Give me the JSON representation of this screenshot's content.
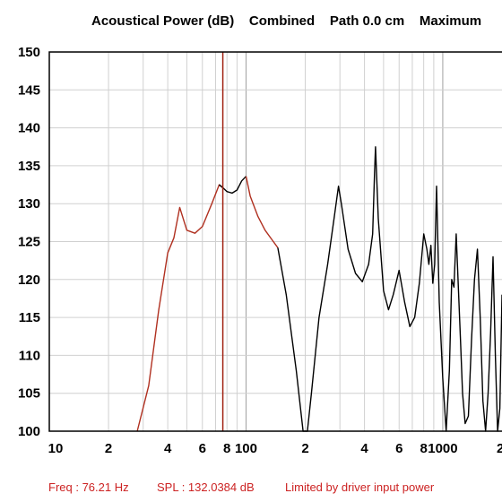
{
  "chart_data": {
    "type": "line",
    "title": "Acoustical Power (dB)    Combined    Path 0.0 cm    Maximum",
    "xlabel": "",
    "ylabel": "",
    "xscale": "log",
    "xlim": [
      10,
      2000
    ],
    "ylim": [
      100,
      150
    ],
    "grid": true,
    "yticks": [
      "150",
      "145",
      "140",
      "135",
      "130",
      "125",
      "120",
      "115",
      "110",
      "105",
      "100"
    ],
    "xtick_labels": [
      {
        "value": 10,
        "label": "10"
      },
      {
        "value": 20,
        "label": "2"
      },
      {
        "value": 40,
        "label": "4"
      },
      {
        "value": 60,
        "label": "6"
      },
      {
        "value": 80,
        "label": "8"
      },
      {
        "value": 100,
        "label": "100"
      },
      {
        "value": 200,
        "label": "2"
      },
      {
        "value": 400,
        "label": "4"
      },
      {
        "value": 600,
        "label": "6"
      },
      {
        "value": 800,
        "label": "8"
      },
      {
        "value": 1000,
        "label": "1000"
      },
      {
        "value": 2000,
        "label": "2"
      }
    ],
    "cursor_x": 76.21,
    "series": [
      {
        "segment": "limited",
        "color": "#b03020",
        "x": [
          28,
          32,
          36,
          40,
          43,
          46,
          50,
          55,
          60,
          67,
          73,
          76.21
        ],
        "y": [
          100,
          106,
          116,
          123.5,
          125.5,
          129.5,
          126.5,
          126.1,
          127,
          130,
          132.5,
          132.1
        ]
      },
      {
        "segment": "normal",
        "color": "#000000",
        "x": [
          73,
          76.21,
          80,
          85,
          90,
          95,
          100
        ],
        "y": [
          132.5,
          132.1,
          131.6,
          131.4,
          131.8,
          133,
          133.6
        ]
      },
      {
        "segment": "limited",
        "color": "#b03020",
        "x": [
          100,
          105,
          115,
          125,
          135,
          145
        ],
        "y": [
          133.6,
          131,
          128.3,
          126.5,
          125.3,
          124.2
        ]
      },
      {
        "segment": "normal",
        "color": "#000000",
        "x": [
          145,
          160,
          180,
          195,
          205,
          215,
          235,
          260,
          280,
          295,
          305,
          330,
          360,
          390,
          420,
          440,
          450,
          455,
          470,
          500,
          530,
          560,
          600,
          640,
          680,
          720,
          760,
          800,
          830,
          850,
          870,
          890,
          910,
          930,
          960,
          1000,
          1040,
          1080,
          1110,
          1140,
          1170,
          1200,
          1230,
          1260,
          1300,
          1350,
          1400,
          1450,
          1500,
          1550,
          1600,
          1650,
          1700,
          1750,
          1800,
          1850,
          1900,
          1950,
          2000
        ],
        "y": [
          124.2,
          118,
          108,
          100,
          100,
          105,
          115,
          122,
          128,
          132.3,
          130,
          124,
          120.8,
          119.7,
          122,
          126,
          134,
          137.5,
          128,
          118.5,
          116,
          118,
          121.2,
          117,
          113.8,
          115,
          119.5,
          126,
          124,
          122,
          124.5,
          119.5,
          122,
          132.3,
          117,
          107,
          100,
          108,
          120,
          119,
          126,
          119,
          112,
          105,
          101,
          102,
          112,
          120,
          124,
          115,
          104,
          100,
          105,
          113,
          123,
          110,
          100,
          103,
          118
        ]
      }
    ]
  },
  "status_bar": {
    "freq": "Freq : 76.21 Hz",
    "spl": "SPL : 132.0384 dB",
    "limit": "Limited by driver input power"
  },
  "colors": {
    "limited_curve": "#b03020",
    "normal_curve": "#000000",
    "cursor": "#a02010",
    "grid": "#d0d0d0",
    "decade_grid": "#a0a0a0",
    "status_text": "#cc2222"
  }
}
